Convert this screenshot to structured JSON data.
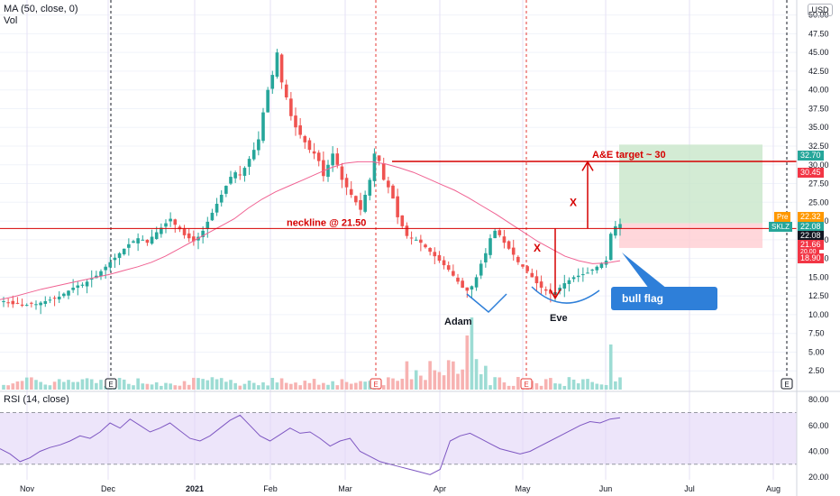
{
  "indicators": {
    "ma_label": "MA (50, close, 0)",
    "vol_label": "Vol",
    "rsi_label": "RSI (14, close)",
    "currency": "USD"
  },
  "annotations": {
    "neckline": "neckline @ 21.50",
    "target": "A&E target ~ 30",
    "adam": "Adam",
    "eve": "Eve",
    "bull_flag": "bull flag",
    "x_mark": "X",
    "earnings_marker": "E"
  },
  "price_tags": {
    "t1": "32.70",
    "t2": "30.45",
    "pre_label": "Pre",
    "pre_value": "22.32",
    "symbol": "SKLZ",
    "last": "22.08",
    "line": "22.08",
    "t3": "21.66",
    "t4": "20.00",
    "t5": "18.90"
  },
  "colors": {
    "up": "#26a69a",
    "down": "#ef5350",
    "ma": "#f06292",
    "rsi": "#7e57c2",
    "rsi_band": "#e1d4f7",
    "target_green": "#c8e6c9",
    "stop_red": "#ffcdd2",
    "annotation_red": "#d50000",
    "annotation_blue": "#2e7fd9"
  },
  "chart_data": {
    "type": "candlestick",
    "price_axis": {
      "ticks": [
        "2.50",
        "5.00",
        "7.50",
        "10.00",
        "12.50",
        "15.00",
        "17.50",
        "20.00",
        "22.50",
        "25.00",
        "27.50",
        "30.00",
        "32.50",
        "35.00",
        "37.50",
        "40.00",
        "42.50",
        "45.00",
        "47.50",
        "50.00"
      ],
      "ylim": [
        0,
        52
      ]
    },
    "rsi_axis": {
      "ticks": [
        "20.00",
        "40.00",
        "60.00",
        "80.00"
      ],
      "ylim": [
        18,
        85
      ],
      "band": [
        30,
        70
      ]
    },
    "x_ticks": [
      "Nov",
      "Dec",
      "2021",
      "Feb",
      "Mar",
      "Apr",
      "May",
      "Jun",
      "Jul",
      "Aug"
    ],
    "series": [
      {
        "name": "SKLZ",
        "closes": [
          11.8,
          11.6,
          11.4,
          11.5,
          11.2,
          11.3,
          11.5,
          11.4,
          11.6,
          11.8,
          12.0,
          12.2,
          12.4,
          12.8,
          13.2,
          13.6,
          13.9,
          14.0,
          14.4,
          14.8,
          15.2,
          15.8,
          16.4,
          17.0,
          17.6,
          18.2,
          18.8,
          19.4,
          19.8,
          20.2,
          20.0,
          19.6,
          20.4,
          21.0,
          21.6,
          22.2,
          22.8,
          22.0,
          21.4,
          20.6,
          20.2,
          19.8,
          20.4,
          21.2,
          22.4,
          23.6,
          24.8,
          26.0,
          27.2,
          28.4,
          29.0,
          28.6,
          29.6,
          30.8,
          32.0,
          33.4,
          37.0,
          40.0,
          42.0,
          45.0,
          41.0,
          39.0,
          36.5,
          35.0,
          34.0,
          33.0,
          32.0,
          31.5,
          30.5,
          28.5,
          30.0,
          31.5,
          30.0,
          28.0,
          27.0,
          26.0,
          25.0,
          24.0,
          26.0,
          28.0,
          31.5,
          30.5,
          28.0,
          27.0,
          25.5,
          23.0,
          21.8,
          20.5,
          20.2,
          20.0,
          19.6,
          19.0,
          18.4,
          17.8,
          17.2,
          16.6,
          16.0,
          15.2,
          14.4,
          13.6,
          13.2,
          13.8,
          15.0,
          16.8,
          18.2,
          20.2,
          21.2,
          20.6,
          19.6,
          18.8,
          18.0,
          17.0,
          16.4,
          15.8,
          15.0,
          14.2,
          13.6,
          13.2,
          12.8,
          13.0,
          13.6,
          14.2,
          14.6,
          15.0,
          15.2,
          15.4,
          15.6,
          16.0,
          16.4,
          16.8,
          17.2,
          20.8,
          21.8,
          22.1
        ]
      },
      {
        "name": "MA (50, close, 0)",
        "values": [
          12.0,
          12.4,
          12.9,
          13.4,
          13.8,
          14.2,
          14.6,
          15.0,
          15.4,
          15.9,
          16.4,
          17.0,
          17.8,
          18.8,
          19.8,
          20.8,
          21.8,
          22.8,
          24.2,
          25.4,
          26.4,
          27.2,
          28.0,
          28.8,
          29.6,
          30.2,
          30.4,
          30.4,
          30.1,
          29.6,
          29.0,
          28.2,
          27.4,
          26.6,
          25.6,
          24.5,
          23.4,
          22.2,
          21.0,
          19.8,
          18.8,
          17.8,
          17.2,
          16.8,
          16.9,
          17.2
        ]
      },
      {
        "name": "RSI (14, close)",
        "values": [
          42,
          38,
          32,
          35,
          40,
          43,
          45,
          48,
          52,
          50,
          55,
          62,
          58,
          65,
          60,
          55,
          58,
          62,
          56,
          50,
          48,
          52,
          58,
          64,
          68,
          60,
          52,
          48,
          53,
          58,
          54,
          55,
          50,
          44,
          48,
          50,
          40,
          36,
          32,
          30,
          28,
          26,
          24,
          22,
          26,
          48,
          52,
          54,
          50,
          46,
          42,
          40,
          38,
          40,
          44,
          48,
          52,
          56,
          60,
          63,
          62,
          65,
          66
        ]
      }
    ]
  }
}
